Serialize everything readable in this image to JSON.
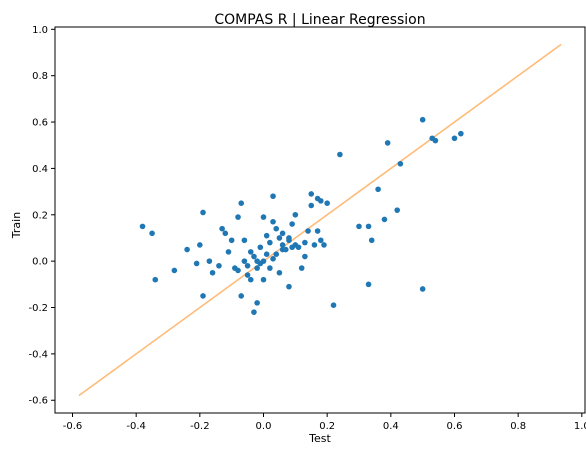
{
  "chart_data": {
    "type": "scatter",
    "title": "COMPAS R | Linear Regression",
    "xlabel": "Test",
    "ylabel": "Train",
    "xlim": [
      -0.655,
      1.01
    ],
    "ylim": [
      -0.655,
      1.01
    ],
    "xticks": [
      -0.6,
      -0.4,
      -0.2,
      0.0,
      0.2,
      0.4,
      0.6,
      0.8,
      1.0
    ],
    "yticks": [
      -0.6,
      -0.4,
      -0.2,
      0.0,
      0.2,
      0.4,
      0.6,
      0.8,
      1.0
    ],
    "grid": false,
    "reference_line": {
      "x": [
        -0.58,
        0.935
      ],
      "y": [
        -0.58,
        0.935
      ],
      "color": "#ffbb78"
    },
    "point_color": "#1f77b4",
    "points": [
      [
        -0.38,
        0.15
      ],
      [
        -0.35,
        0.12
      ],
      [
        -0.34,
        -0.08
      ],
      [
        -0.28,
        -0.04
      ],
      [
        -0.24,
        0.05
      ],
      [
        -0.21,
        -0.01
      ],
      [
        -0.2,
        0.07
      ],
      [
        -0.19,
        0.21
      ],
      [
        -0.19,
        -0.15
      ],
      [
        -0.17,
        0.0
      ],
      [
        -0.16,
        -0.05
      ],
      [
        -0.14,
        -0.02
      ],
      [
        -0.13,
        0.14
      ],
      [
        -0.12,
        0.12
      ],
      [
        -0.11,
        0.04
      ],
      [
        -0.1,
        0.09
      ],
      [
        -0.09,
        -0.03
      ],
      [
        -0.08,
        -0.04
      ],
      [
        -0.08,
        0.19
      ],
      [
        -0.07,
        0.25
      ],
      [
        -0.07,
        -0.15
      ],
      [
        -0.06,
        0.09
      ],
      [
        -0.06,
        0.0
      ],
      [
        -0.05,
        -0.02
      ],
      [
        -0.05,
        -0.06
      ],
      [
        -0.04,
        0.04
      ],
      [
        -0.04,
        -0.08
      ],
      [
        -0.03,
        -0.22
      ],
      [
        -0.03,
        0.02
      ],
      [
        -0.02,
        -0.18
      ],
      [
        -0.02,
        -0.03
      ],
      [
        -0.01,
        0.06
      ],
      [
        -0.01,
        -0.01
      ],
      [
        0.0,
        0.0
      ],
      [
        0.0,
        0.19
      ],
      [
        0.0,
        -0.08
      ],
      [
        0.01,
        0.11
      ],
      [
        0.01,
        0.03
      ],
      [
        0.02,
        0.08
      ],
      [
        0.02,
        -0.03
      ],
      [
        0.03,
        0.28
      ],
      [
        0.03,
        0.17
      ],
      [
        0.03,
        0.01
      ],
      [
        0.04,
        0.14
      ],
      [
        0.04,
        0.03
      ],
      [
        0.05,
        0.1
      ],
      [
        0.05,
        -0.05
      ],
      [
        0.06,
        0.05
      ],
      [
        0.06,
        0.12
      ],
      [
        0.07,
        0.05
      ],
      [
        0.08,
        0.09
      ],
      [
        0.08,
        -0.11
      ],
      [
        0.09,
        0.16
      ],
      [
        0.09,
        0.06
      ],
      [
        0.1,
        0.07
      ],
      [
        0.1,
        0.2
      ],
      [
        0.11,
        0.06
      ],
      [
        0.12,
        -0.03
      ],
      [
        0.13,
        0.08
      ],
      [
        0.13,
        0.02
      ],
      [
        0.14,
        0.13
      ],
      [
        0.15,
        0.29
      ],
      [
        0.15,
        0.24
      ],
      [
        0.16,
        0.07
      ],
      [
        0.17,
        0.27
      ],
      [
        0.17,
        0.13
      ],
      [
        0.18,
        0.09
      ],
      [
        0.18,
        0.26
      ],
      [
        0.19,
        0.07
      ],
      [
        0.2,
        0.25
      ],
      [
        0.22,
        -0.19
      ],
      [
        0.24,
        0.46
      ],
      [
        0.3,
        0.15
      ],
      [
        0.33,
        0.15
      ],
      [
        0.33,
        -0.1
      ],
      [
        0.34,
        0.09
      ],
      [
        0.36,
        0.31
      ],
      [
        0.38,
        0.18
      ],
      [
        0.39,
        0.51
      ],
      [
        0.42,
        0.22
      ],
      [
        0.43,
        0.42
      ],
      [
        0.5,
        -0.12
      ],
      [
        0.5,
        0.61
      ],
      [
        0.53,
        0.53
      ],
      [
        0.54,
        0.52
      ],
      [
        0.6,
        0.53
      ],
      [
        0.62,
        0.55
      ],
      [
        0.06,
        0.07
      ],
      [
        0.08,
        0.1
      ],
      [
        -0.02,
        0.0
      ]
    ]
  }
}
